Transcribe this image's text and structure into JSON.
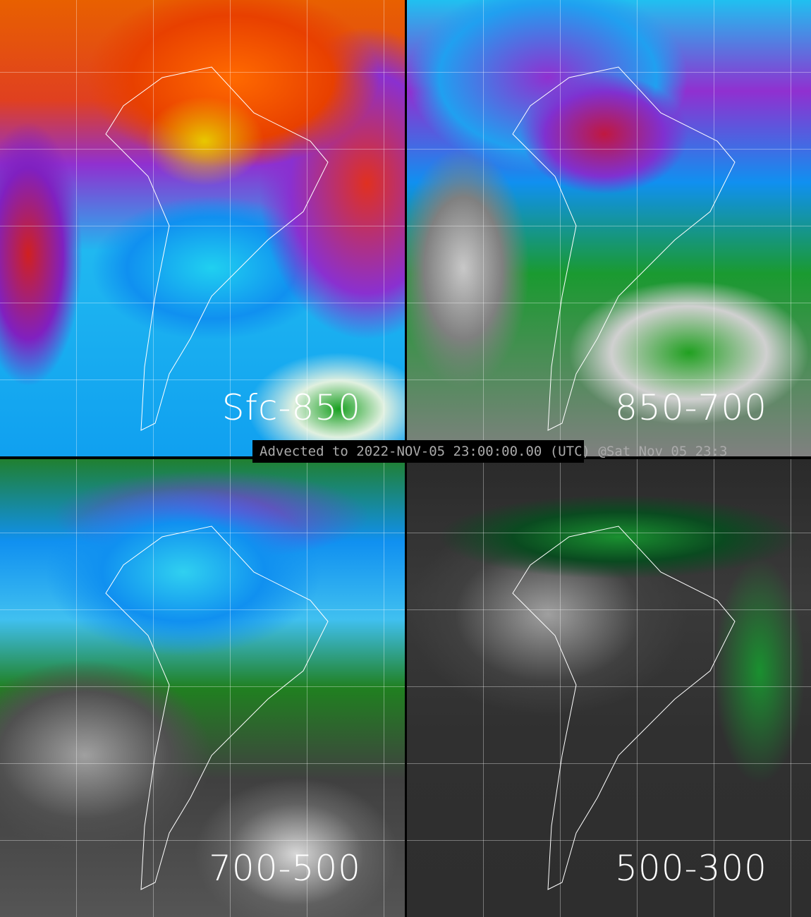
{
  "panels": [
    {
      "label": "Sfc-850"
    },
    {
      "label": "850-700"
    },
    {
      "label": "700-500"
    },
    {
      "label": "500-300"
    }
  ],
  "timestamp": "Advected to 2022-NOV-05 23:00:00.00 (UTC) @Sat Nov 05 23:3",
  "colors": {
    "divider": "#000000",
    "label": "#ffffff",
    "coastline": "#ffffff",
    "stamp_text": "#aaaaaa"
  }
}
